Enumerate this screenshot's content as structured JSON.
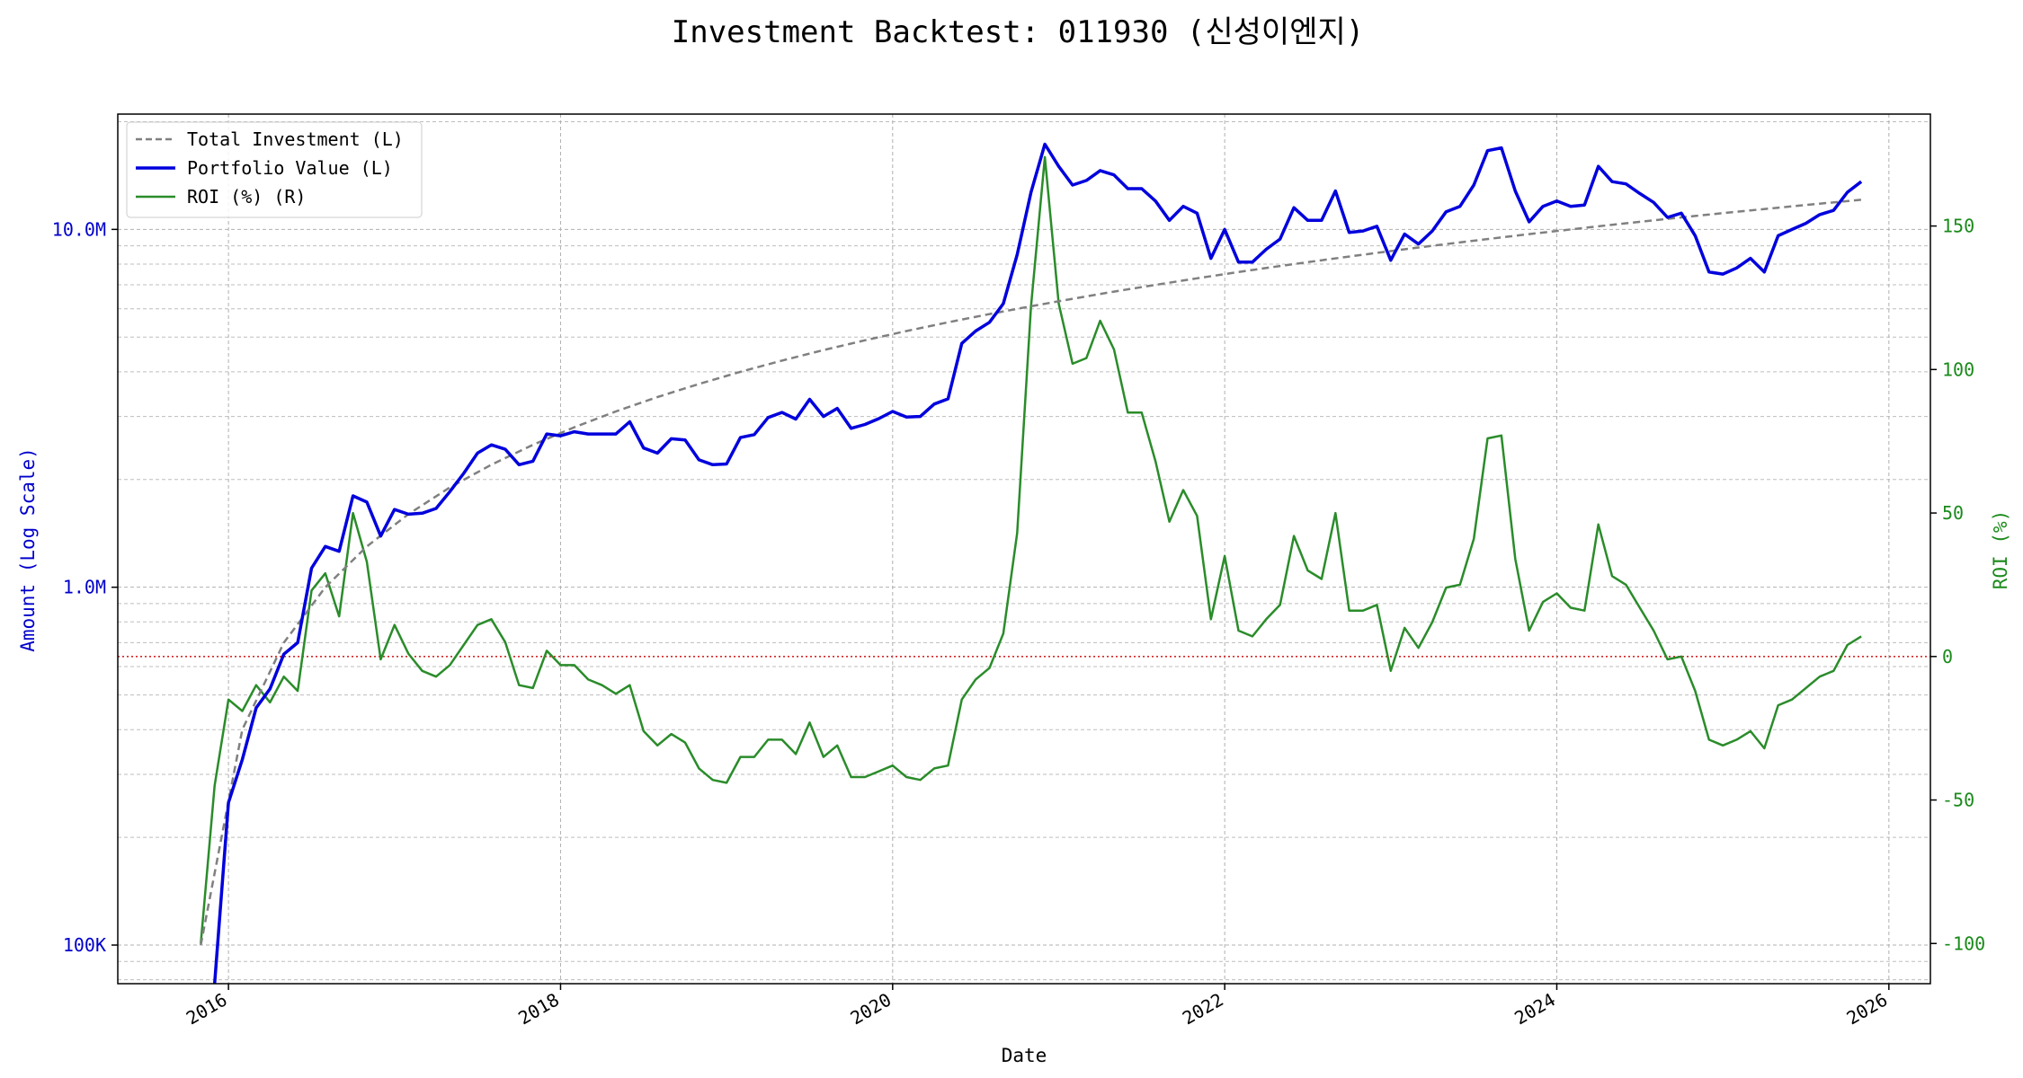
{
  "chart_data": {
    "type": "line",
    "title": "Investment Backtest: 011930 (신성이엔지)",
    "xlabel": "Date",
    "ylabel_left": "Amount (Log Scale)",
    "ylabel_right": "ROI (%)",
    "x_ticks": [
      "2016",
      "2018",
      "2020",
      "2022",
      "2024",
      "2026"
    ],
    "y_left_ticks": [
      "100K",
      "1.0M",
      "10.0M"
    ],
    "y_right_ticks": [
      "-100",
      "-50",
      "0",
      "50",
      "100",
      "150"
    ],
    "y_left_scale": "log",
    "y_left_range": [
      78000,
      21000000
    ],
    "y_right_range": [
      -114,
      189
    ],
    "x_range": [
      "2015-05-01",
      "2026-04-01"
    ],
    "grid": true,
    "legend_position": "top-left",
    "reference_line": {
      "axis": "right",
      "value": 0,
      "color": "#d62728",
      "style": "dotted"
    },
    "colors": {
      "total_investment": "#808080",
      "portfolio_value": "#0000dd",
      "roi": "#2a8c2a"
    },
    "series": [
      {
        "name": "Total Investment (L)",
        "axis": "left",
        "style": "dashed",
        "x": [
          "2015-11",
          "2016-02",
          "2016-05",
          "2016-08",
          "2016-11",
          "2017-02",
          "2017-05",
          "2017-08",
          "2017-11",
          "2018-02",
          "2018-05",
          "2018-08",
          "2018-11",
          "2019-02",
          "2019-05",
          "2019-08",
          "2019-11",
          "2020-02",
          "2020-05",
          "2020-08",
          "2020-11",
          "2021-02",
          "2021-05",
          "2021-08",
          "2021-11",
          "2022-02",
          "2022-05",
          "2022-08",
          "2022-11",
          "2023-02",
          "2023-05",
          "2023-08",
          "2023-11",
          "2024-02",
          "2024-05",
          "2024-08",
          "2024-11",
          "2025-02",
          "2025-05",
          "2025-08",
          "2025-11"
        ],
        "values": [
          100000,
          400000,
          700000,
          1000000,
          1300000,
          1600000,
          1900000,
          2200000,
          2500000,
          2800000,
          3100000,
          3400000,
          3700000,
          4000000,
          4300000,
          4600000,
          4900000,
          5200000,
          5500000,
          5800000,
          6100000,
          6400000,
          6700000,
          7000000,
          7300000,
          7600000,
          7900000,
          8200000,
          8500000,
          8800000,
          9100000,
          9400000,
          9700000,
          10000000,
          10300000,
          10600000,
          10900000,
          11200000,
          11500000,
          11800000,
          12100000
        ]
      },
      {
        "name": "Portfolio Value (L)",
        "axis": "left",
        "style": "solid",
        "x": [
          "2015-12",
          "2016-01",
          "2016-02",
          "2016-03",
          "2016-04",
          "2016-05",
          "2016-06",
          "2016-07",
          "2016-08",
          "2016-09",
          "2016-10",
          "2016-11",
          "2016-12",
          "2017-01",
          "2017-02",
          "2017-03",
          "2017-04",
          "2017-05",
          "2017-06",
          "2017-07",
          "2017-08",
          "2017-09",
          "2017-10",
          "2017-11",
          "2017-12",
          "2018-01",
          "2018-02",
          "2018-03",
          "2018-04",
          "2018-05",
          "2018-06",
          "2018-07",
          "2018-08",
          "2018-09",
          "2018-10",
          "2018-11",
          "2018-12",
          "2019-01",
          "2019-02",
          "2019-03",
          "2019-04",
          "2019-05",
          "2019-06",
          "2019-07",
          "2019-08",
          "2019-09",
          "2019-10",
          "2019-11",
          "2019-12",
          "2020-01",
          "2020-02",
          "2020-03",
          "2020-04",
          "2020-05",
          "2020-06",
          "2020-07",
          "2020-08",
          "2020-09",
          "2020-10",
          "2020-11",
          "2020-12",
          "2021-01",
          "2021-02",
          "2021-03",
          "2021-04",
          "2021-05",
          "2021-06",
          "2021-07",
          "2021-08",
          "2021-09",
          "2021-10",
          "2021-11",
          "2021-12",
          "2022-01",
          "2022-02",
          "2022-03",
          "2022-04",
          "2022-05",
          "2022-06",
          "2022-07",
          "2022-08",
          "2022-09",
          "2022-10",
          "2022-11",
          "2022-12",
          "2023-01",
          "2023-02",
          "2023-03",
          "2023-04",
          "2023-05",
          "2023-06",
          "2023-07",
          "2023-08",
          "2023-09",
          "2023-10",
          "2023-11",
          "2023-12",
          "2024-01",
          "2024-02",
          "2024-03",
          "2024-04",
          "2024-05",
          "2024-06",
          "2024-07",
          "2024-08",
          "2024-09",
          "2024-10",
          "2024-11",
          "2024-12",
          "2025-01",
          "2025-02",
          "2025-03",
          "2025-04",
          "2025-05",
          "2025-06",
          "2025-07",
          "2025-08",
          "2025-09",
          "2025-10",
          "2025-11"
        ],
        "values": [
          70000,
          250000,
          330000,
          460000,
          520000,
          650000,
          700000,
          1130000,
          1300000,
          1260000,
          1800000,
          1730000,
          1390000,
          1650000,
          1600000,
          1610000,
          1660000,
          1850000,
          2080000,
          2370000,
          2500000,
          2430000,
          2200000,
          2250000,
          2680000,
          2650000,
          2720000,
          2680000,
          2680000,
          2680000,
          2900000,
          2450000,
          2370000,
          2600000,
          2580000,
          2270000,
          2200000,
          2210000,
          2620000,
          2670000,
          2980000,
          3080000,
          2950000,
          3350000,
          3000000,
          3160000,
          2780000,
          2850000,
          2960000,
          3100000,
          2990000,
          3000000,
          3250000,
          3360000,
          4800000,
          5200000,
          5500000,
          6200000,
          8500000,
          12700000,
          17300000,
          15000000,
          13300000,
          13700000,
          14600000,
          14200000,
          13000000,
          13000000,
          12000000,
          10600000,
          11600000,
          11100000,
          8300000,
          10000000,
          8100000,
          8100000,
          8800000,
          9400000,
          11500000,
          10600000,
          10600000,
          12800000,
          9800000,
          9900000,
          10200000,
          8200000,
          9700000,
          9100000,
          9900000,
          11200000,
          11600000,
          13300000,
          16600000,
          16900000,
          12800000,
          10500000,
          11600000,
          12000000,
          11600000,
          11700000,
          15000000,
          13600000,
          13400000,
          12600000,
          11900000,
          10800000,
          11100000,
          9600000,
          7600000,
          7500000,
          7800000,
          8300000,
          7600000,
          9600000,
          10000000,
          10400000,
          11000000,
          11300000,
          12700000,
          13600000
        ]
      },
      {
        "name": "ROI (%) (R)",
        "axis": "right",
        "style": "solid",
        "x": [
          "2015-11",
          "2015-12",
          "2016-01",
          "2016-02",
          "2016-03",
          "2016-04",
          "2016-05",
          "2016-06",
          "2016-07",
          "2016-08",
          "2016-09",
          "2016-10",
          "2016-11",
          "2016-12",
          "2017-01",
          "2017-02",
          "2017-03",
          "2017-04",
          "2017-05",
          "2017-06",
          "2017-07",
          "2017-08",
          "2017-09",
          "2017-10",
          "2017-11",
          "2017-12",
          "2018-01",
          "2018-02",
          "2018-03",
          "2018-04",
          "2018-05",
          "2018-06",
          "2018-07",
          "2018-08",
          "2018-09",
          "2018-10",
          "2018-11",
          "2018-12",
          "2019-01",
          "2019-02",
          "2019-03",
          "2019-04",
          "2019-05",
          "2019-06",
          "2019-07",
          "2019-08",
          "2019-09",
          "2019-10",
          "2019-11",
          "2019-12",
          "2020-01",
          "2020-02",
          "2020-03",
          "2020-04",
          "2020-05",
          "2020-06",
          "2020-07",
          "2020-08",
          "2020-09",
          "2020-10",
          "2020-11",
          "2020-12",
          "2021-01",
          "2021-02",
          "2021-03",
          "2021-04",
          "2021-05",
          "2021-06",
          "2021-07",
          "2021-08",
          "2021-09",
          "2021-10",
          "2021-11",
          "2021-12",
          "2022-01",
          "2022-02",
          "2022-03",
          "2022-04",
          "2022-05",
          "2022-06",
          "2022-07",
          "2022-08",
          "2022-09",
          "2022-10",
          "2022-11",
          "2022-12",
          "2023-01",
          "2023-02",
          "2023-03",
          "2023-04",
          "2023-05",
          "2023-06",
          "2023-07",
          "2023-08",
          "2023-09",
          "2023-10",
          "2023-11",
          "2023-12",
          "2024-01",
          "2024-02",
          "2024-03",
          "2024-04",
          "2024-05",
          "2024-06",
          "2024-07",
          "2024-08",
          "2024-09",
          "2024-10",
          "2024-11",
          "2024-12",
          "2025-01",
          "2025-02",
          "2025-03",
          "2025-04",
          "2025-05",
          "2025-06",
          "2025-07",
          "2025-08",
          "2025-09",
          "2025-10",
          "2025-11"
        ],
        "values": [
          -100,
          -45,
          -15,
          -19,
          -10,
          -16,
          -7,
          -12,
          23,
          29,
          14,
          50,
          33,
          -1,
          11,
          1,
          -5,
          -7,
          -3,
          4,
          11,
          13,
          5,
          -10,
          -11,
          2,
          -3,
          -3,
          -8,
          -10,
          -13,
          -10,
          -26,
          -31,
          -27,
          -30,
          -39,
          -43,
          -44,
          -35,
          -35,
          -29,
          -29,
          -34,
          -23,
          -35,
          -31,
          -42,
          -42,
          -40,
          -38,
          -42,
          -43,
          -39,
          -38,
          -15,
          -8,
          -4,
          8,
          43,
          122,
          174,
          123,
          102,
          104,
          117,
          107,
          85,
          85,
          68,
          47,
          58,
          49,
          13,
          35,
          9,
          7,
          13,
          18,
          42,
          30,
          27,
          50,
          16,
          16,
          18,
          -5,
          10,
          3,
          12,
          24,
          25,
          41,
          76,
          77,
          34,
          9,
          19,
          22,
          17,
          16,
          46,
          28,
          25,
          17,
          9,
          -1,
          0,
          -12,
          -29,
          -31,
          -29,
          -26,
          -32,
          -17,
          -15,
          -11,
          -7,
          -5,
          4,
          7
        ]
      }
    ]
  }
}
